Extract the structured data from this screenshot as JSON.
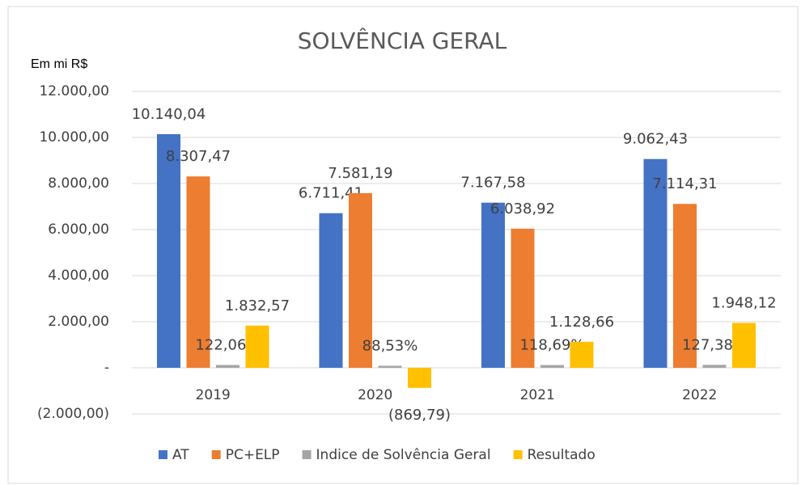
{
  "chart_data": {
    "type": "bar",
    "title": "SOLVÊNCIA GERAL",
    "y_axis_label": "Em mi R$",
    "categories": [
      "2019",
      "2020",
      "2021",
      "2022"
    ],
    "series": [
      {
        "name": "AT",
        "color": "#4472c4",
        "values": [
          10140.04,
          6711.41,
          7167.58,
          9062.43
        ],
        "value_labels": [
          "10.140,04",
          "6.711,41",
          "7.167,58",
          "9.062,43"
        ]
      },
      {
        "name": "PC+ELP",
        "color": "#ed7d31",
        "values": [
          8307.47,
          7581.19,
          6038.92,
          7114.31
        ],
        "value_labels": [
          "8.307,47",
          "7.581,19",
          "6.038,92",
          "7.114,31"
        ]
      },
      {
        "name": "Indice de Solvência Geral",
        "color": "#a5a5a5",
        "values": [
          122.06,
          88.53,
          118.69,
          127.38
        ],
        "value_labels": [
          "122,06%",
          "88,53%",
          "118,69%",
          "127,38%"
        ]
      },
      {
        "name": "Resultado",
        "color": "#ffc000",
        "values": [
          1832.57,
          -869.79,
          1128.66,
          1948.12
        ],
        "value_labels": [
          "1.832,57",
          "(869,79)",
          "1.128,66",
          "1.948,12"
        ]
      }
    ],
    "ylim": [
      -2000,
      12000
    ],
    "yticks": [
      {
        "value": -2000,
        "label": "(2.000,00)"
      },
      {
        "value": 0,
        "label": "-"
      },
      {
        "value": 2000,
        "label": "2.000,00"
      },
      {
        "value": 4000,
        "label": "4.000,00"
      },
      {
        "value": 6000,
        "label": "6.000,00"
      },
      {
        "value": 8000,
        "label": "8.000,00"
      },
      {
        "value": 10000,
        "label": "10.000,00"
      },
      {
        "value": 12000,
        "label": "12.000,00"
      }
    ],
    "grid": true,
    "legend": "bottom"
  }
}
